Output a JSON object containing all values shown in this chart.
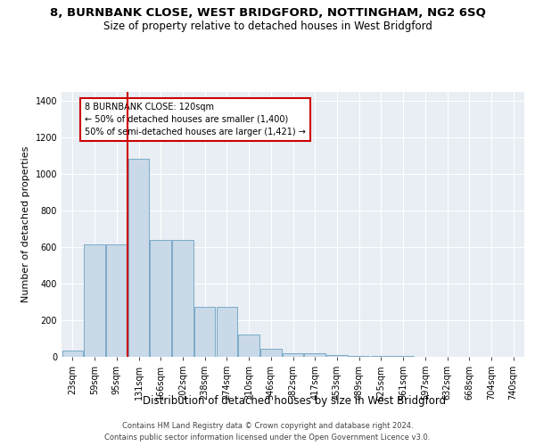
{
  "title_line1": "8, BURNBANK CLOSE, WEST BRIDGFORD, NOTTINGHAM, NG2 6SQ",
  "title_line2": "Size of property relative to detached houses in West Bridgford",
  "xlabel": "Distribution of detached houses by size in West Bridgford",
  "ylabel": "Number of detached properties",
  "bin_labels": [
    "23sqm",
    "59sqm",
    "95sqm",
    "131sqm",
    "166sqm",
    "202sqm",
    "238sqm",
    "274sqm",
    "310sqm",
    "346sqm",
    "382sqm",
    "417sqm",
    "453sqm",
    "489sqm",
    "525sqm",
    "561sqm",
    "597sqm",
    "632sqm",
    "668sqm",
    "704sqm",
    "740sqm"
  ],
  "bar_heights": [
    35,
    615,
    615,
    1080,
    640,
    640,
    275,
    275,
    120,
    45,
    20,
    20,
    10,
    5,
    5,
    3,
    2,
    1,
    1,
    1,
    0
  ],
  "bar_color": "#c9d9e8",
  "bar_edge_color": "#7aaac8",
  "vline_color": "#cc0000",
  "annotation_text": "8 BURNBANK CLOSE: 120sqm\n← 50% of detached houses are smaller (1,400)\n50% of semi-detached houses are larger (1,421) →",
  "annotation_box_color": "#cc0000",
  "ylim": [
    0,
    1450
  ],
  "yticks": [
    0,
    200,
    400,
    600,
    800,
    1000,
    1200,
    1400
  ],
  "plot_bg_color": "#e8eef4",
  "footer_line1": "Contains HM Land Registry data © Crown copyright and database right 2024.",
  "footer_line2": "Contains public sector information licensed under the Open Government Licence v3.0.",
  "title_fontsize": 9.5,
  "subtitle_fontsize": 8.5,
  "xlabel_fontsize": 8.5,
  "ylabel_fontsize": 8,
  "tick_fontsize": 7,
  "footer_fontsize": 6
}
